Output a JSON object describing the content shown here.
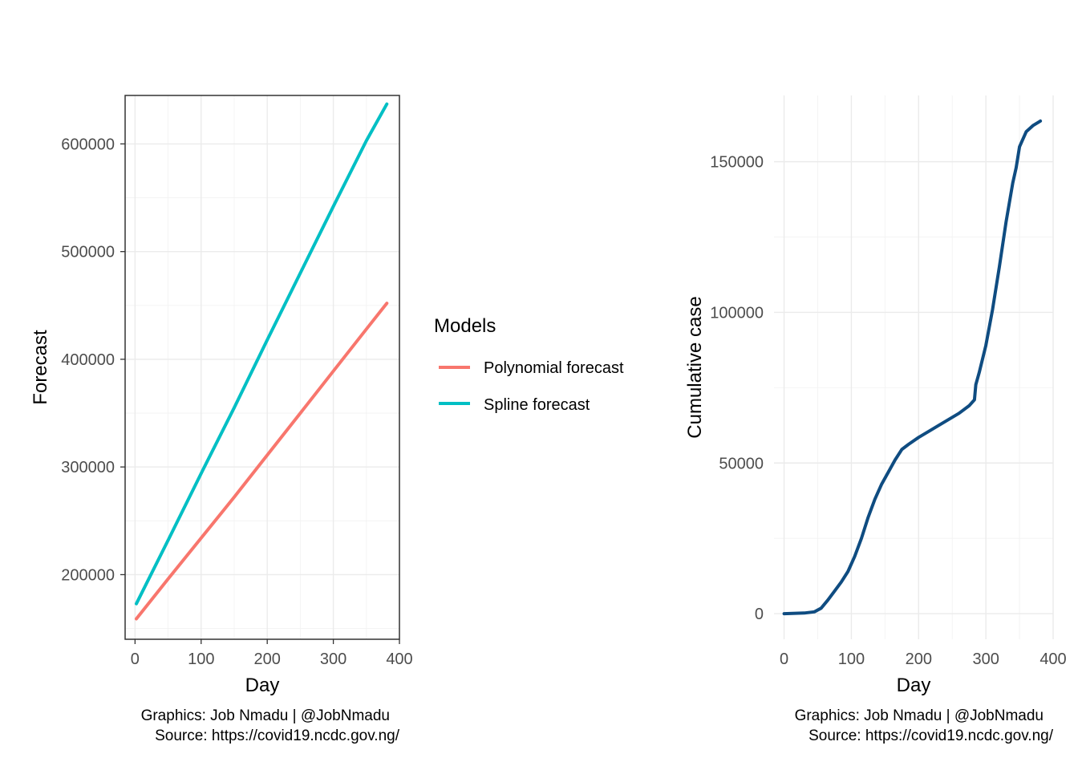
{
  "chart_data": [
    {
      "type": "line",
      "title": "",
      "xlabel": "Day",
      "ylabel": "Forecast",
      "xlim": [
        -15,
        400
      ],
      "ylim": [
        140000,
        645000
      ],
      "x_ticks": [
        0,
        100,
        200,
        300,
        400
      ],
      "x_tick_labels": [
        "0",
        "100",
        "200",
        "300",
        "400"
      ],
      "y_ticks": [
        200000,
        300000,
        400000,
        500000,
        600000
      ],
      "y_tick_labels": [
        "200000",
        "300000",
        "400000",
        "500000",
        "600000"
      ],
      "grid": true,
      "panel_border": true,
      "legend": {
        "title": "Models",
        "placement": "right",
        "entries": [
          "Polynomial forecast",
          "Spline forecast"
        ]
      },
      "series": [
        {
          "name": "Polynomial forecast",
          "color": "#F8766D",
          "x": [
            2,
            50,
            100,
            150,
            200,
            250,
            300,
            350,
            381
          ],
          "y": [
            159000,
            196000,
            234000,
            272000,
            311000,
            350000,
            389000,
            428000,
            452000
          ]
        },
        {
          "name": "Spline forecast",
          "color": "#00BFC4",
          "x": [
            2,
            50,
            100,
            150,
            200,
            250,
            300,
            350,
            381
          ],
          "y": [
            173000,
            232000,
            294000,
            355000,
            418000,
            480000,
            542000,
            603000,
            637000
          ]
        }
      ],
      "caption": [
        "Graphics: Job Nmadu | @JobNmadu",
        "Source: https://covid19.ncdc.gov.ng/"
      ]
    },
    {
      "type": "line",
      "title": "",
      "xlabel": "Day",
      "ylabel": "Cumulative case",
      "xlim": [
        -15,
        400
      ],
      "ylim": [
        -8500,
        172000
      ],
      "x_ticks": [
        0,
        100,
        200,
        300,
        400
      ],
      "x_tick_labels": [
        "0",
        "100",
        "200",
        "300",
        "400"
      ],
      "y_ticks": [
        0,
        50000,
        100000,
        150000
      ],
      "y_tick_labels": [
        "0",
        "50000",
        "100000",
        "150000"
      ],
      "grid": true,
      "panel_border": false,
      "series": [
        {
          "color": "#0F4C81",
          "x": [
            0,
            30,
            45,
            55,
            65,
            75,
            85,
            95,
            105,
            115,
            125,
            135,
            145,
            155,
            165,
            175,
            185,
            200,
            215,
            230,
            245,
            260,
            275,
            283,
            285,
            290,
            300,
            310,
            320,
            330,
            340,
            345,
            350,
            360,
            370,
            381
          ],
          "y": [
            0,
            200,
            600,
            1800,
            4500,
            7500,
            10500,
            14000,
            19000,
            25000,
            32000,
            38000,
            43000,
            47000,
            51000,
            54500,
            56200,
            58500,
            60500,
            62500,
            64500,
            66500,
            69000,
            71000,
            76000,
            80000,
            89000,
            101000,
            115000,
            130000,
            143000,
            148000,
            155000,
            160000,
            162000,
            163500
          ]
        }
      ],
      "caption": [
        "Graphics: Job Nmadu | @JobNmadu",
        "Source: https://covid19.ncdc.gov.ng/"
      ]
    }
  ]
}
